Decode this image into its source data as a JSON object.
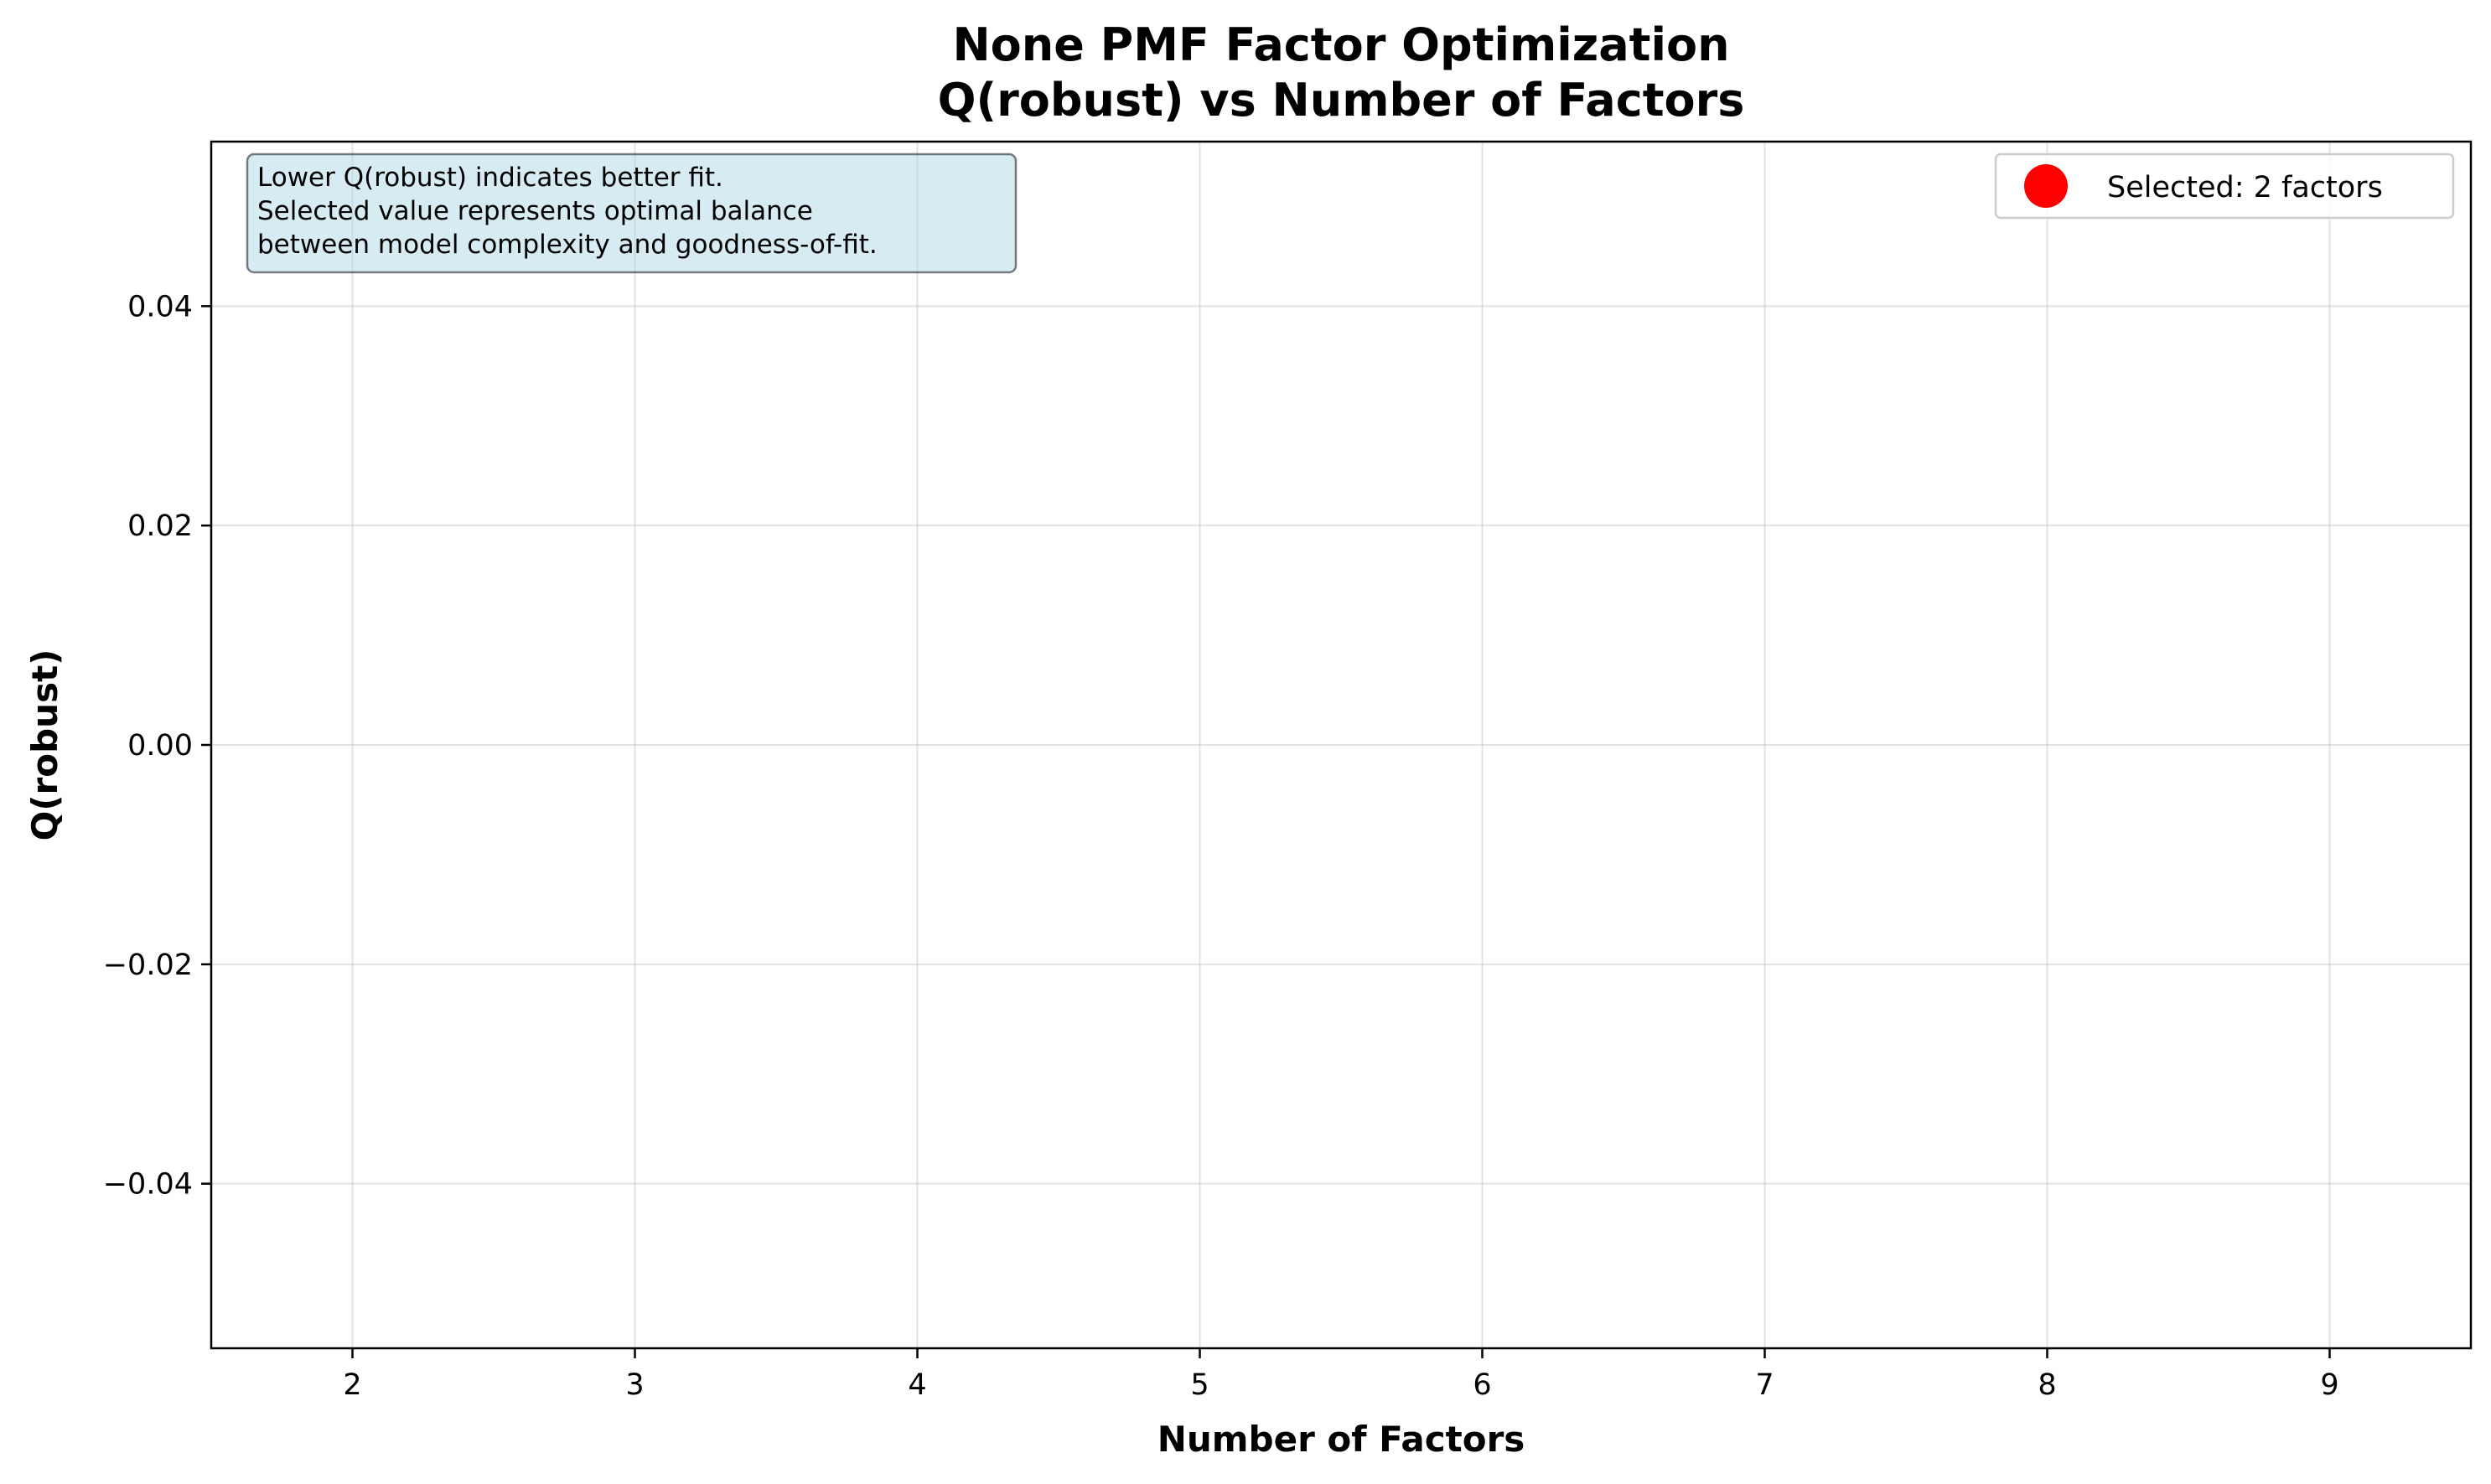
{
  "chart_data": {
    "type": "scatter",
    "title_lines": [
      "None PMF Factor Optimization",
      "Q(robust) vs Number of Factors"
    ],
    "xlabel": "Number of Factors",
    "ylabel": "Q(robust)",
    "xlim": [
      1.5,
      9.5
    ],
    "ylim": [
      -0.055,
      0.055
    ],
    "x_ticks": [
      2,
      3,
      4,
      5,
      6,
      7,
      8,
      9
    ],
    "y_ticks": [
      0.04,
      0.02,
      0.0,
      -0.02,
      -0.04
    ],
    "y_tick_labels": [
      "0.04",
      "0.02",
      "0.00",
      "−0.02",
      "−0.04"
    ],
    "grid": true,
    "series": [],
    "legend": {
      "placement": "top-right",
      "entries": [
        {
          "label": "Selected: 2 factors",
          "marker": "circle",
          "color": "#ff0000"
        }
      ]
    },
    "annotation": {
      "lines": [
        "Lower Q(robust) indicates better fit.",
        "Selected value represents optimal balance",
        "between model complexity and goodness-of-fit."
      ],
      "background_color": "#add8e6",
      "placement": "top-left"
    }
  }
}
